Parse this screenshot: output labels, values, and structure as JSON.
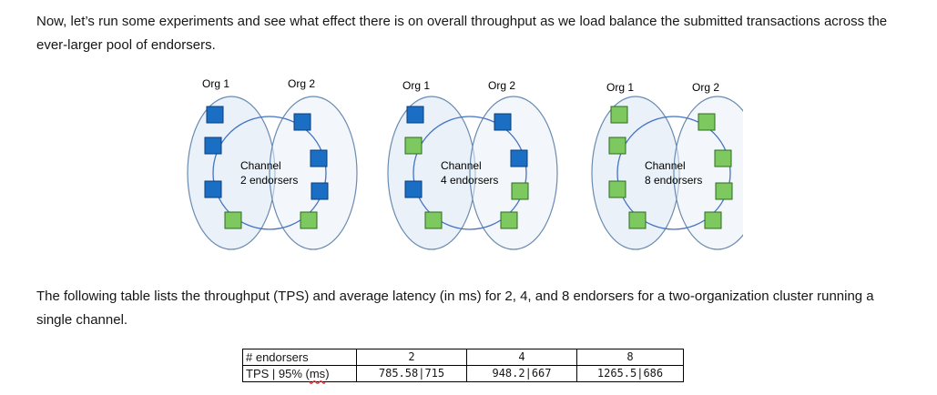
{
  "paragraph1": "Now, let’s run some experiments and see what effect there is on overall throughput as we load balance the submitted transactions across the ever-larger pool of endorsers.",
  "paragraph2": "The following table lists the throughput (TPS) and average latency (in ms) for 2, 4, and 8 endorsers for a two-organization cluster running a single channel.",
  "colors": {
    "blue_peer": "#1a6fc4",
    "green_peer": "#7ec860",
    "org_fill": "#eaf1f9",
    "channel_line": "#4472c4"
  },
  "diagrams": [
    {
      "org1": "Org 1",
      "org2": "Org 2",
      "channel": "Channel",
      "endorsers_label": "2 endorsers",
      "green_count": 2
    },
    {
      "org1": "Org 1",
      "org2": "Org 2",
      "channel": "Channel",
      "endorsers_label": "4 endorsers",
      "green_count": 4
    },
    {
      "org1": "Org 1",
      "org2": "Org 2",
      "channel": "Channel",
      "endorsers_label": "8 endorsers",
      "green_count": 8
    }
  ],
  "table": {
    "row_header_1": "# endorsers",
    "row_header_2_prefix": "TPS | 95% (",
    "row_header_2_unit": "ms",
    "row_header_2_suffix": ")",
    "columns": [
      "2",
      "4",
      "8"
    ],
    "values": [
      "785.58|715",
      "948.2|667",
      "1265.5|686"
    ]
  }
}
